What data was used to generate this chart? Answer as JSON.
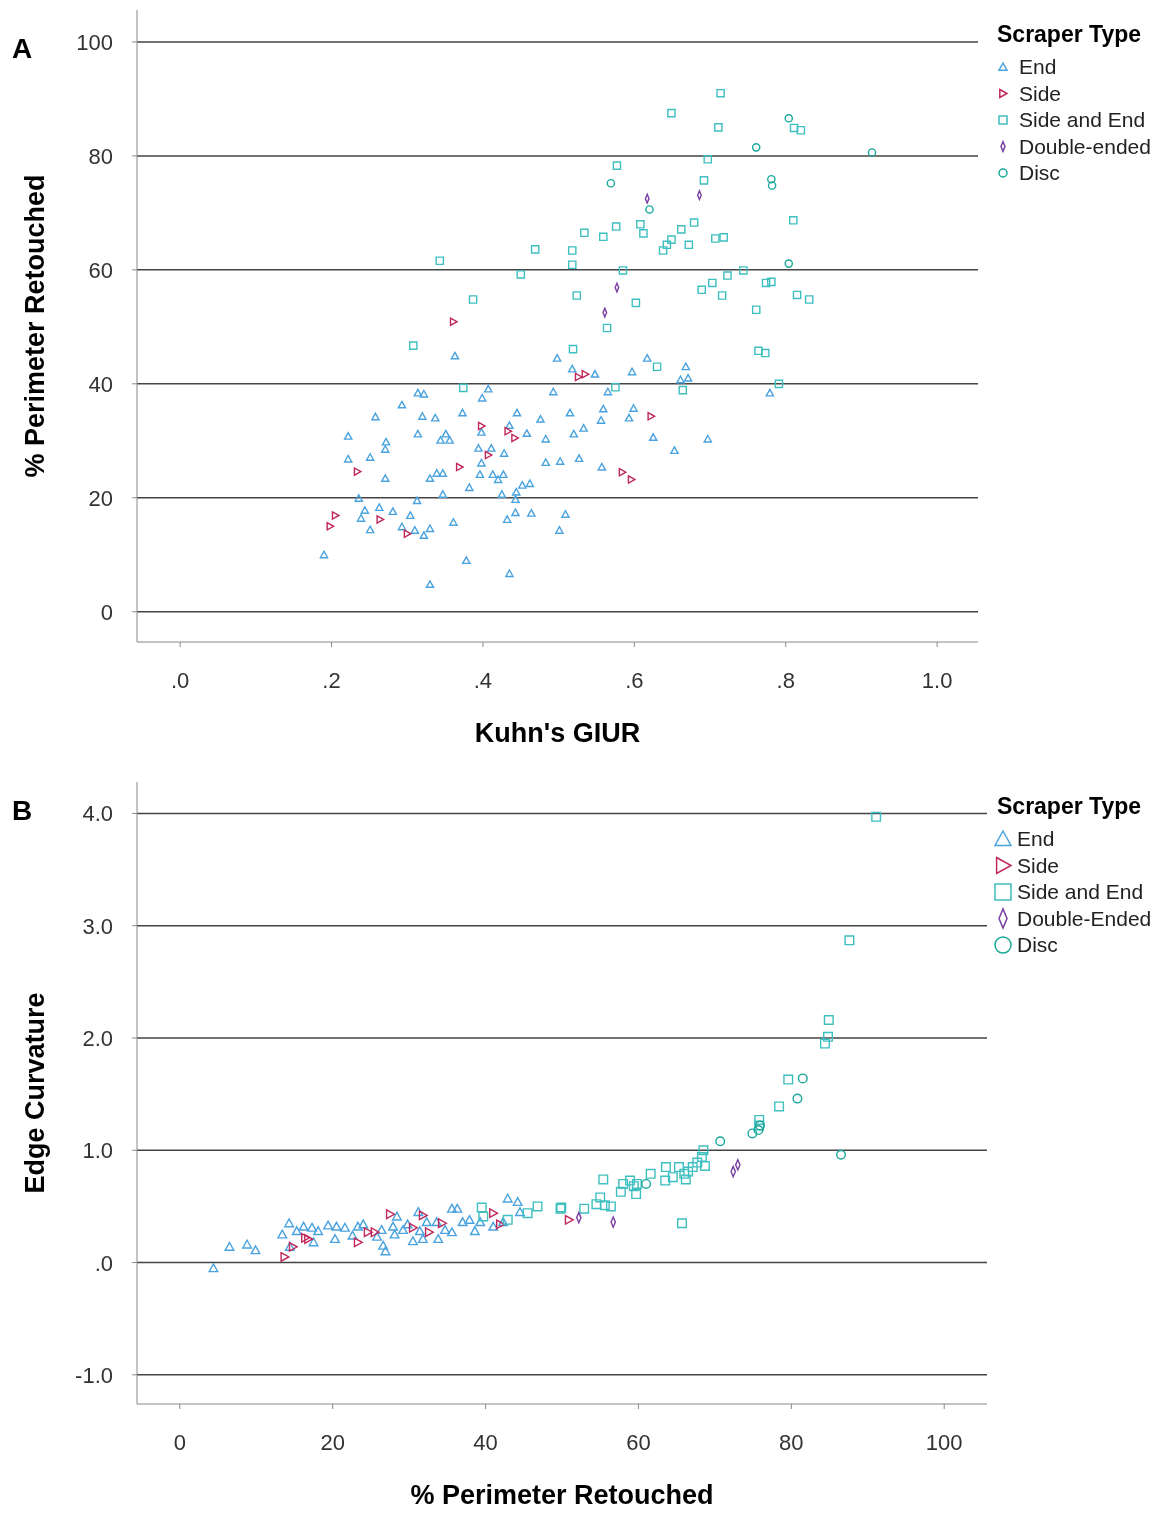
{
  "chart_data": [
    {
      "type": "scatter",
      "annotations": [
        "A"
      ],
      "xlabel": "Kuhn's GIUR",
      "ylabel": "% Perimeter Retouched",
      "legend_title": "Scraper Type",
      "legend": "top right",
      "grid": "y",
      "xlim": [
        -0.057,
        1.054
      ],
      "ylim": [
        -5.3,
        105.6
      ],
      "xticks": [
        {
          "value": 0,
          "label": ".0"
        },
        {
          "value": 0.2,
          "label": ".2"
        },
        {
          "value": 0.4,
          "label": ".4"
        },
        {
          "value": 0.6,
          "label": ".6"
        },
        {
          "value": 0.8,
          "label": ".8"
        },
        {
          "value": 1,
          "label": "1.0"
        }
      ],
      "yticks": [
        0,
        20,
        40,
        60,
        80,
        100
      ],
      "series": [
        {
          "name": "End",
          "color": "#4aa3df",
          "marker": "triangle",
          "x": [
            0.363,
            0.498,
            0.518,
            0.548,
            0.597,
            0.617,
            0.407,
            0.399,
            0.314,
            0.322,
            0.493,
            0.565,
            0.293,
            0.258,
            0.32,
            0.337,
            0.373,
            0.445,
            0.476,
            0.515,
            0.559,
            0.599,
            0.556,
            0.593,
            0.222,
            0.272,
            0.271,
            0.314,
            0.351,
            0.344,
            0.356,
            0.398,
            0.435,
            0.458,
            0.483,
            0.52,
            0.533,
            0.394,
            0.411,
            0.428,
            0.398,
            0.222,
            0.251,
            0.271,
            0.33,
            0.339,
            0.347,
            0.396,
            0.413,
            0.42,
            0.427,
            0.382,
            0.452,
            0.462,
            0.444,
            0.425,
            0.483,
            0.502,
            0.527,
            0.557,
            0.236,
            0.313,
            0.347,
            0.443,
            0.244,
            0.239,
            0.263,
            0.281,
            0.304,
            0.251,
            0.293,
            0.31,
            0.33,
            0.322,
            0.361,
            0.432,
            0.443,
            0.464,
            0.509,
            0.501,
            0.19,
            0.378,
            0.435,
            0.33,
            0.668,
            0.671,
            0.661,
            0.779,
            0.625,
            0.653,
            0.697
          ],
          "values": [
            44.9,
            44.5,
            42.6,
            41.7,
            42.1,
            44.5,
            39.1,
            37.5,
            38.4,
            38.2,
            38.6,
            38.6,
            36.3,
            34.2,
            34.3,
            34.0,
            34.9,
            34.9,
            33.8,
            34.9,
            35.6,
            35.7,
            33.6,
            34.0,
            30.8,
            29.8,
            28.5,
            31.2,
            31.2,
            30.1,
            30.1,
            31.5,
            32.7,
            31.3,
            30.3,
            31.2,
            32.2,
            28.7,
            28.7,
            27.8,
            26.1,
            26.8,
            27.1,
            23.4,
            23.4,
            24.3,
            24.3,
            24.1,
            24.1,
            23.2,
            24.1,
            21.8,
            22.2,
            22.5,
            21.0,
            20.6,
            26.2,
            26.4,
            26.9,
            25.4,
            19.9,
            19.5,
            20.6,
            19.7,
            17.8,
            16.4,
            18.3,
            17.6,
            16.9,
            14.4,
            14.9,
            14.3,
            14.6,
            13.4,
            15.7,
            16.2,
            17.4,
            17.3,
            17.1,
            14.3,
            10.0,
            9.0,
            6.7,
            4.8,
            43.0,
            41.0,
            40.7,
            38.4,
            30.6,
            28.3,
            30.3
          ]
        },
        {
          "name": "Side",
          "color": "#c0285a",
          "marker": "triangle-right",
          "x": [
            0.361,
            0.198,
            0.205,
            0.234,
            0.264,
            0.3,
            0.369,
            0.398,
            0.407,
            0.433,
            0.442,
            0.526,
            0.535,
            0.584,
            0.596,
            0.622
          ],
          "values": [
            50.9,
            15.0,
            16.9,
            24.6,
            16.2,
            13.7,
            25.4,
            32.6,
            27.5,
            31.7,
            30.5,
            41.2,
            41.7,
            24.5,
            23.2,
            34.3
          ]
        },
        {
          "name": "Side and End",
          "color": "#3fbfbf",
          "marker": "square",
          "x": [
            0.343,
            0.387,
            0.308,
            0.374,
            0.45,
            0.469,
            0.518,
            0.518,
            0.524,
            0.519,
            0.534,
            0.559,
            0.576,
            0.564,
            0.602,
            0.585,
            0.577,
            0.608,
            0.612,
            0.63,
            0.649,
            0.638,
            0.643,
            0.649,
            0.662,
            0.672,
            0.679,
            0.664,
            0.689,
            0.692,
            0.697,
            0.703,
            0.707,
            0.714,
            0.711,
            0.716,
            0.718,
            0.723,
            0.744,
            0.761,
            0.764,
            0.773,
            0.774,
            0.781,
            0.791,
            0.811,
            0.82,
            0.81,
            0.815,
            0.831,
            0.575
          ],
          "values": [
            61.6,
            54.8,
            46.7,
            39.3,
            59.2,
            63.6,
            60.9,
            63.4,
            55.5,
            46.1,
            66.5,
            65.8,
            67.6,
            49.8,
            54.2,
            59.9,
            78.3,
            68.0,
            66.4,
            43.0,
            87.5,
            63.4,
            64.4,
            65.3,
            67.1,
            64.4,
            68.3,
            38.9,
            56.5,
            75.7,
            79.4,
            57.7,
            65.5,
            91.0,
            85.0,
            55.5,
            65.7,
            59.0,
            59.9,
            53.0,
            45.8,
            45.4,
            57.7,
            57.9,
            40.0,
            84.9,
            84.5,
            68.7,
            55.6,
            54.8,
            39.4
          ]
        },
        {
          "name": "Double-ended",
          "color": "#7a3fa3",
          "marker": "diamond",
          "x": [
            0.617,
            0.686,
            0.577,
            0.561
          ],
          "values": [
            72.5,
            73.1,
            56.9,
            52.5
          ]
        },
        {
          "name": "Disc",
          "color": "#1aa89a",
          "marker": "circle",
          "x": [
            0.569,
            0.62,
            0.761,
            0.804,
            0.781,
            0.782,
            0.804,
            0.914
          ],
          "values": [
            75.2,
            70.6,
            81.5,
            86.6,
            75.9,
            74.8,
            61.1,
            80.6
          ]
        }
      ]
    },
    {
      "type": "scatter",
      "annotations": [
        "B"
      ],
      "xlabel": "% Perimeter Retouched",
      "ylabel": "Edge Curvature",
      "legend_title": "Scraper Type",
      "legend": "top right",
      "grid": "y",
      "xlim": [
        -5.6,
        105.6
      ],
      "ylim": [
        -1.26,
        4.28
      ],
      "xticks": [
        0,
        20,
        40,
        60,
        80,
        100
      ],
      "yticks": [
        {
          "value": -1,
          "label": "-1.0"
        },
        {
          "value": 0,
          "label": ".0"
        },
        {
          "value": 1,
          "label": "1.0"
        },
        {
          "value": 2,
          "label": "2.0"
        },
        {
          "value": 3,
          "label": "3.0"
        },
        {
          "value": 4,
          "label": "4.0"
        }
      ],
      "series": [
        {
          "name": "End",
          "color": "#4aa3df",
          "marker": "triangle",
          "x": [
            4.4,
            6.5,
            8.8,
            9.9,
            13.4,
            14.3,
            14.4,
            15.3,
            16.2,
            17.3,
            17.5,
            18.1,
            19.4,
            20.3,
            20.5,
            21.6,
            22.6,
            23.3,
            24.0,
            25.8,
            26.4,
            26.6,
            26.9,
            27.9,
            28.4,
            28.1,
            29.2,
            29.8,
            30.5,
            31.2,
            31.4,
            31.8,
            32.3,
            33.6,
            33.8,
            34.7,
            35.6,
            35.6,
            36.3,
            37.0,
            37.9,
            38.6,
            39.3,
            42.9,
            44.2,
            44.5,
            41.0,
            42.3
          ],
          "values": [
            -0.05,
            0.14,
            0.16,
            0.11,
            0.25,
            0.35,
            0.14,
            0.28,
            0.32,
            0.31,
            0.18,
            0.28,
            0.33,
            0.21,
            0.32,
            0.31,
            0.24,
            0.32,
            0.34,
            0.23,
            0.29,
            0.15,
            0.1,
            0.32,
            0.41,
            0.25,
            0.29,
            0.34,
            0.19,
            0.45,
            0.28,
            0.21,
            0.36,
            0.36,
            0.21,
            0.29,
            0.27,
            0.48,
            0.48,
            0.36,
            0.38,
            0.28,
            0.36,
            0.57,
            0.54,
            0.45,
            0.32,
            0.36
          ]
        },
        {
          "name": "Side",
          "color": "#c0285a",
          "marker": "triangle-right",
          "x": [
            50.9,
            13.7,
            14.8,
            16.4,
            16.8,
            23.3,
            24.6,
            25.5,
            27.5,
            30.5,
            31.8,
            32.6,
            34.3,
            41.0,
            41.9
          ],
          "values": [
            0.38,
            0.05,
            0.14,
            0.22,
            0.21,
            0.18,
            0.27,
            0.27,
            0.43,
            0.31,
            0.42,
            0.27,
            0.35,
            0.44,
            0.34
          ]
        },
        {
          "name": "Side and End",
          "color": "#3fbfbf",
          "marker": "square",
          "x": [
            91.1,
            87.6,
            84.9,
            84.8,
            84.4,
            79.6,
            78.4,
            75.8,
            75.8,
            68.5,
            68.3,
            68.7,
            67.7,
            67.1,
            66.5,
            66.0,
            65.3,
            64.5,
            63.6,
            63.5,
            66.2,
            61.6,
            59.8,
            59.4,
            58.9,
            58.0,
            57.7,
            59.7,
            55.4,
            55.0,
            54.5,
            55.6,
            56.4,
            52.9,
            49.9,
            65.7,
            39.5,
            39.7,
            42.9,
            45.5,
            46.8,
            49.8
          ],
          "values": [
            3.97,
            2.87,
            2.16,
            2.01,
            1.95,
            1.63,
            1.39,
            1.27,
            1.22,
            1.0,
            0.94,
            0.86,
            0.89,
            0.85,
            0.81,
            0.79,
            0.85,
            0.76,
            0.85,
            0.73,
            0.74,
            0.79,
            0.7,
            0.68,
            0.73,
            0.7,
            0.63,
            0.61,
            0.74,
            0.58,
            0.52,
            0.51,
            0.5,
            0.48,
            0.49,
            0.35,
            0.49,
            0.41,
            0.38,
            0.44,
            0.5,
            0.48
          ]
        },
        {
          "name": "Double-Ended",
          "color": "#7a3fa3",
          "marker": "diamond",
          "x": [
            52.2,
            56.7,
            72.4,
            73.0
          ],
          "values": [
            0.4,
            0.36,
            0.81,
            0.87
          ]
        },
        {
          "name": "Disc",
          "color": "#1aa89a",
          "marker": "circle",
          "x": [
            81.5,
            80.8,
            75.7,
            74.9,
            70.7,
            61.0,
            86.5,
            75.9
          ],
          "values": [
            1.64,
            1.46,
            1.18,
            1.15,
            1.08,
            0.7,
            0.96,
            1.22
          ]
        }
      ]
    }
  ]
}
